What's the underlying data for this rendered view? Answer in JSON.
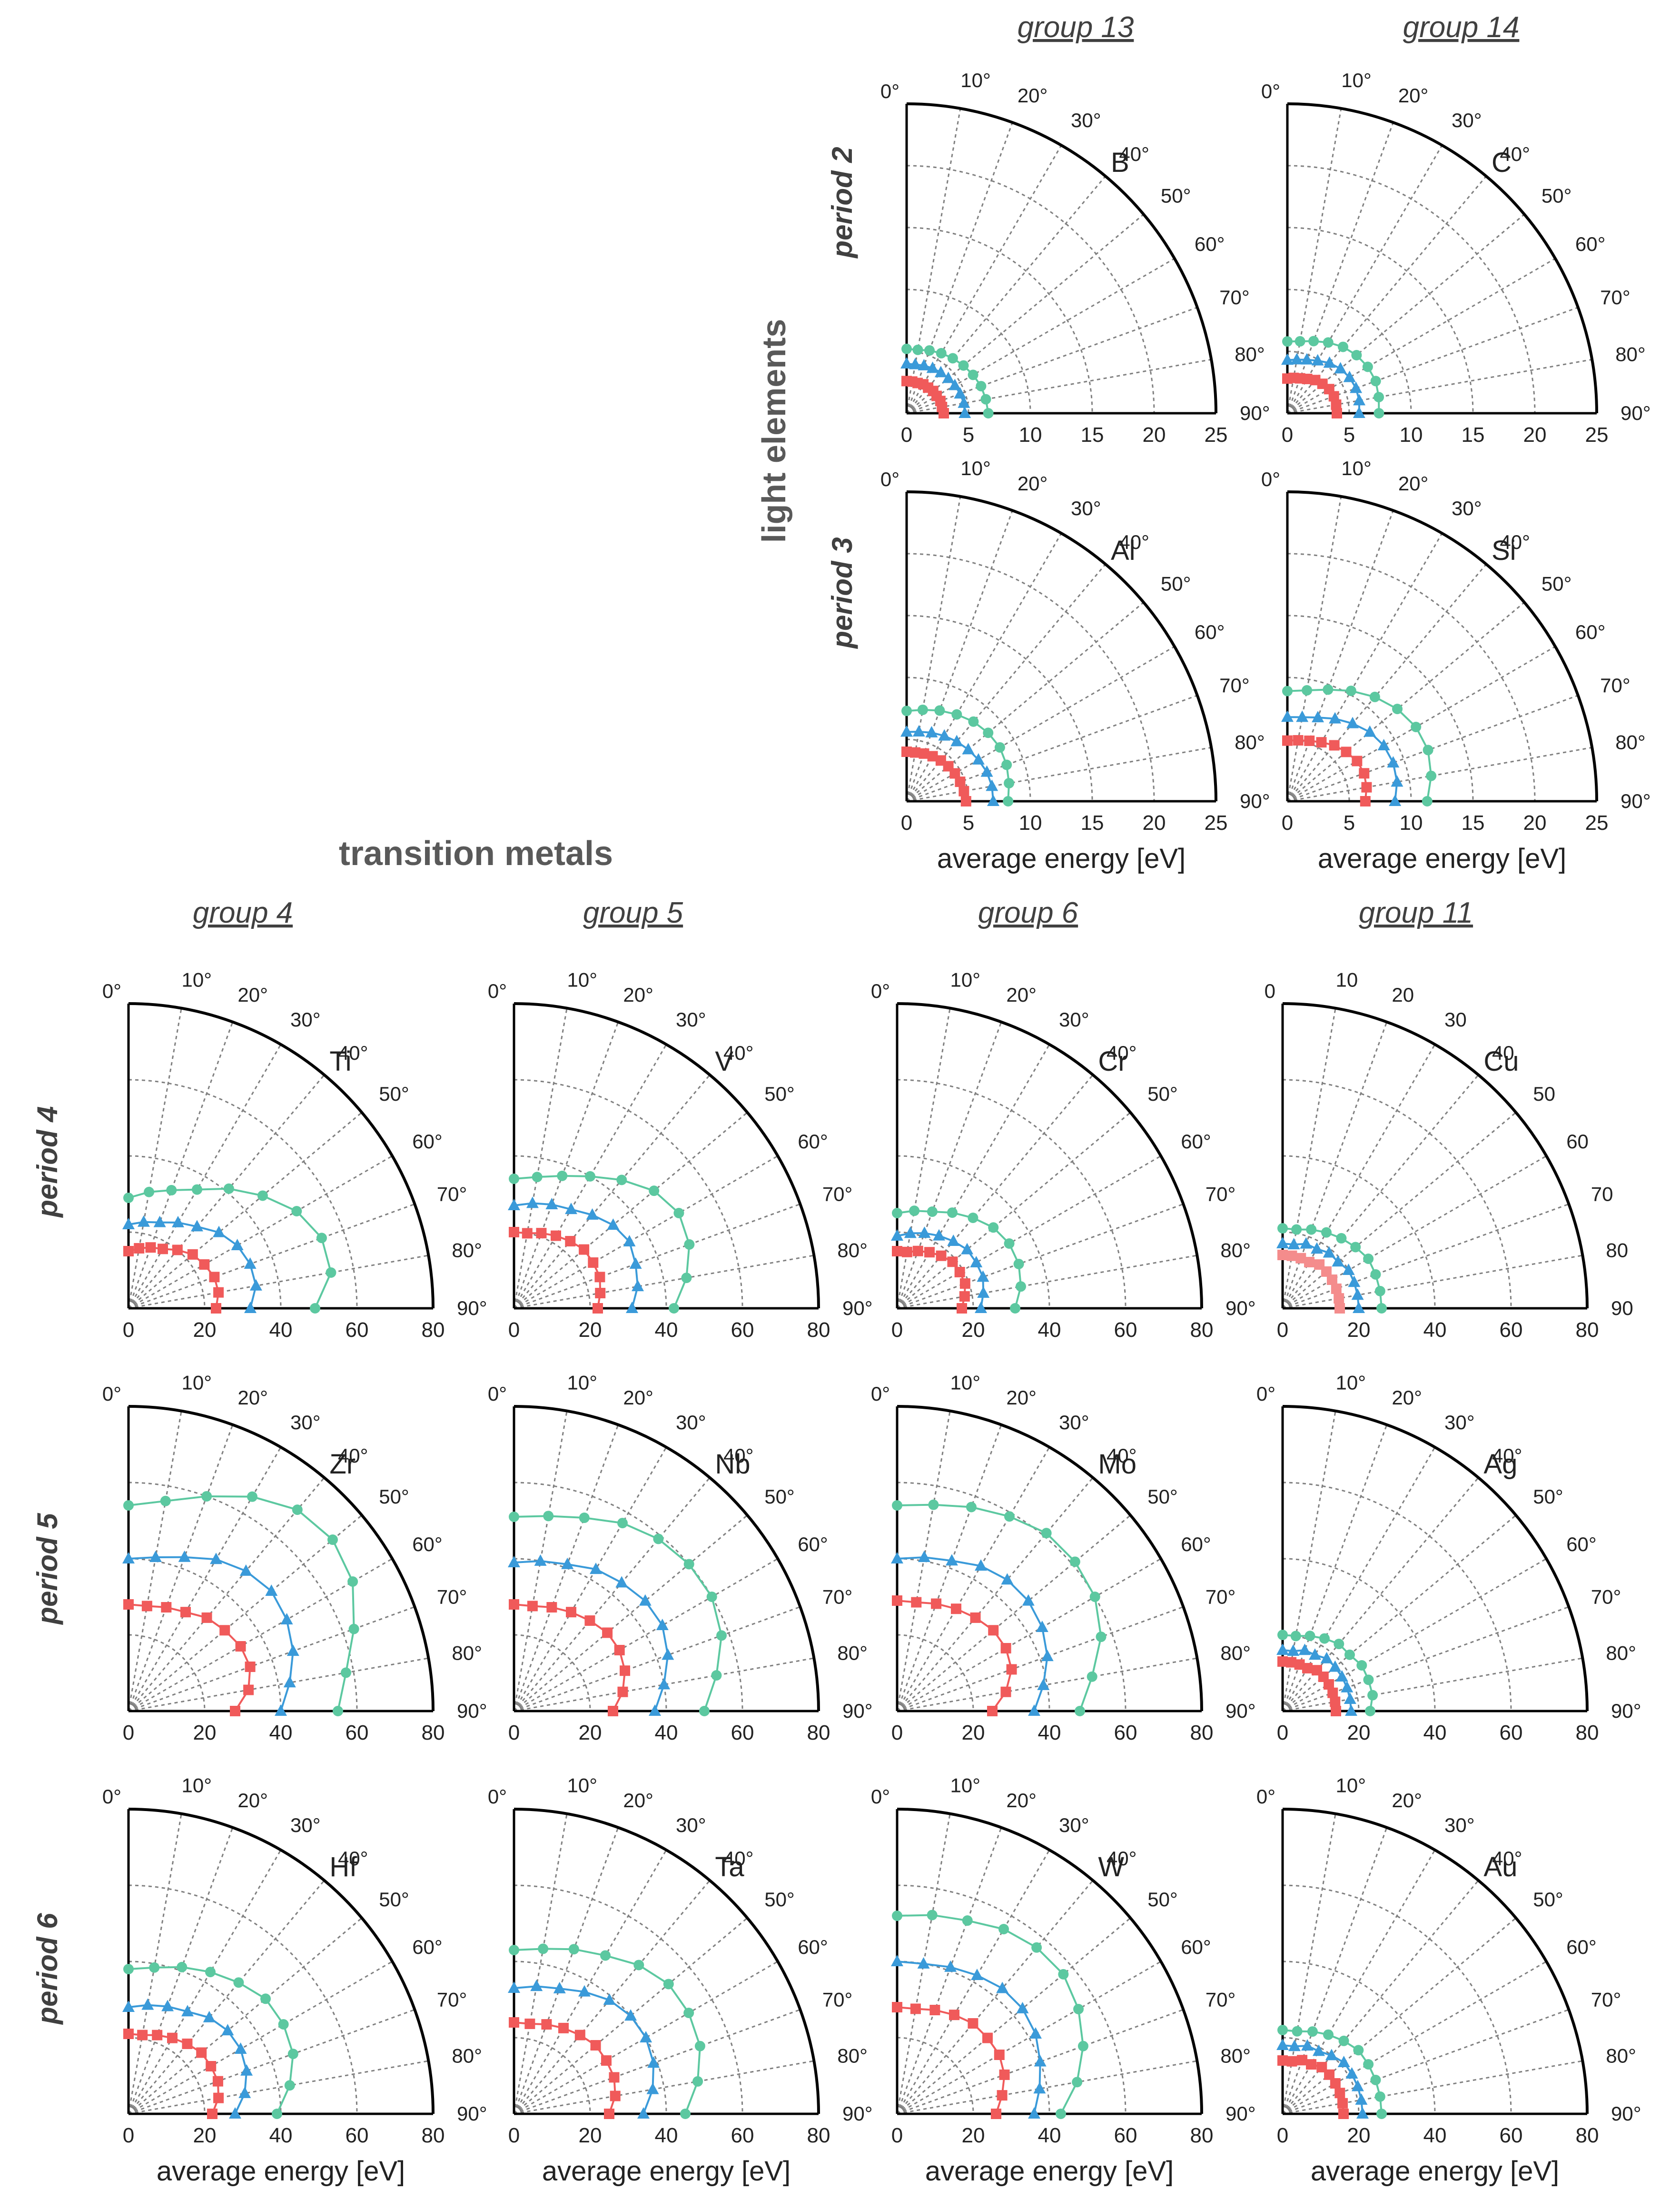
{
  "section_titles": {
    "light_elements": "light elements",
    "transition_metals": "transition metals"
  },
  "light_groups": [
    "group 13",
    "group 14"
  ],
  "light_periods": [
    "period 2",
    "period 3"
  ],
  "tm_groups": [
    "group 4",
    "group 5",
    "group 6",
    "group 11"
  ],
  "tm_periods": [
    "period 4",
    "period 5",
    "period 6"
  ],
  "xlabel": "average energy [eV]",
  "colors": {
    "s1": "#f05a5a",
    "s2": "#3a9ad9",
    "s3": "#5cc8a0",
    "s1_cu": "#f48c8c"
  },
  "chart_data": [
    {
      "type": "polar",
      "element": "B",
      "group": "group 13",
      "period": "period 2",
      "rmax": 25,
      "xticks": [
        "0",
        "5",
        "10",
        "15",
        "20",
        "25"
      ],
      "angle_labels": [
        "0°",
        "10°",
        "20°",
        "30°",
        "40°",
        "50°",
        "60°",
        "70°",
        "80°",
        "90°"
      ],
      "xlabel": "",
      "series": [
        {
          "name": "series 1",
          "values": [
            2.6,
            2.6,
            2.6,
            2.7,
            2.7,
            2.8,
            2.8,
            2.9,
            2.9,
            3.0
          ]
        },
        {
          "name": "series 2",
          "values": [
            4.0,
            4.0,
            4.1,
            4.2,
            4.3,
            4.4,
            4.5,
            4.6,
            4.7,
            4.7
          ]
        },
        {
          "name": "series 3",
          "values": [
            5.2,
            5.2,
            5.4,
            5.6,
            5.8,
            6.0,
            6.2,
            6.4,
            6.5,
            6.6
          ]
        }
      ]
    },
    {
      "type": "polar",
      "element": "C",
      "group": "group 14",
      "period": "period 2",
      "rmax": 25,
      "xticks": [
        "0",
        "5",
        "10",
        "15",
        "20",
        "25"
      ],
      "angle_labels": [
        "0°",
        "10°",
        "20°",
        "30°",
        "40°",
        "50°",
        "60°",
        "70°",
        "80°",
        "90°"
      ],
      "xlabel": "",
      "series": [
        {
          "name": "series 1",
          "values": [
            2.8,
            2.9,
            3.0,
            3.2,
            3.5,
            3.7,
            3.9,
            4.0,
            4.0,
            4.0
          ]
        },
        {
          "name": "series 2",
          "values": [
            4.3,
            4.4,
            4.6,
            4.9,
            5.3,
            5.6,
            5.8,
            5.9,
            5.9,
            5.8
          ]
        },
        {
          "name": "series 3",
          "values": [
            5.8,
            5.9,
            6.2,
            6.6,
            7.0,
            7.3,
            7.5,
            7.6,
            7.5,
            7.4
          ]
        }
      ]
    },
    {
      "type": "polar",
      "element": "Al",
      "group": "group 13",
      "period": "period 3",
      "rmax": 25,
      "xticks": [
        "0",
        "5",
        "10",
        "15",
        "20",
        "25"
      ],
      "angle_labels": [
        "0°",
        "10°",
        "20°",
        "30°",
        "40°",
        "50°",
        "60°",
        "70°",
        "80°",
        "90°"
      ],
      "xlabel": "average energy [eV]",
      "series": [
        {
          "name": "series 1",
          "values": [
            4.0,
            4.0,
            4.1,
            4.2,
            4.3,
            4.4,
            4.5,
            4.6,
            4.7,
            4.8
          ]
        },
        {
          "name": "series 2",
          "values": [
            5.6,
            5.7,
            5.9,
            6.1,
            6.3,
            6.5,
            6.7,
            6.9,
            7.0,
            7.0
          ]
        },
        {
          "name": "series 3",
          "values": [
            7.3,
            7.5,
            7.8,
            8.1,
            8.4,
            8.6,
            8.7,
            8.6,
            8.4,
            8.2
          ]
        }
      ]
    },
    {
      "type": "polar",
      "element": "Si",
      "group": "group 14",
      "period": "period 3",
      "rmax": 25,
      "xticks": [
        "0",
        "5",
        "10",
        "15",
        "20",
        "25"
      ],
      "angle_labels": [
        "0°",
        "10°",
        "20°",
        "30°",
        "40°",
        "50°",
        "60°",
        "70°",
        "80°",
        "90°"
      ],
      "xlabel": "average energy [eV]",
      "series": [
        {
          "name": "series 1",
          "values": [
            4.9,
            5.0,
            5.2,
            5.5,
            5.9,
            6.2,
            6.5,
            6.6,
            6.5,
            6.3
          ]
        },
        {
          "name": "series 2",
          "values": [
            6.8,
            6.9,
            7.2,
            7.7,
            8.2,
            8.7,
            9.0,
            9.1,
            9.0,
            8.7
          ]
        },
        {
          "name": "series 3",
          "values": [
            8.9,
            9.1,
            9.6,
            10.3,
            11.0,
            11.6,
            12.0,
            12.1,
            11.8,
            11.3
          ]
        }
      ]
    },
    {
      "type": "polar",
      "element": "Ti",
      "group": "group 4",
      "period": "period 4",
      "rmax": 80,
      "xticks": [
        "0",
        "20",
        "40",
        "60",
        "80"
      ],
      "angle_labels": [
        "0°",
        "10°",
        "20°",
        "30°",
        "40°",
        "50°",
        "60°",
        "70°",
        "80°",
        "90°"
      ],
      "xlabel": "",
      "series": [
        {
          "name": "series 1",
          "values": [
            15,
            16,
            17,
            18,
            20,
            22,
            23,
            24,
            24,
            23
          ]
        },
        {
          "name": "series 2",
          "values": [
            22,
            23,
            24,
            26,
            28,
            31,
            33,
            34,
            34,
            32
          ]
        },
        {
          "name": "series 3",
          "values": [
            29,
            31,
            33,
            36,
            41,
            46,
            51,
            54,
            54,
            49
          ]
        }
      ]
    },
    {
      "type": "polar",
      "element": "V",
      "group": "group 5",
      "period": "period 4",
      "rmax": 80,
      "xticks": [
        "0",
        "20",
        "40",
        "60",
        "80"
      ],
      "angle_labels": [
        "0°",
        "10°",
        "20°",
        "30°",
        "40°",
        "50°",
        "60°",
        "70°",
        "80°",
        "90°"
      ],
      "xlabel": "",
      "series": [
        {
          "name": "series 1",
          "values": [
            20,
            20,
            21,
            22,
            23,
            24,
            24,
            24,
            23,
            22
          ]
        },
        {
          "name": "series 2",
          "values": [
            27,
            28,
            29,
            30,
            32,
            34,
            35,
            34,
            33,
            31
          ]
        },
        {
          "name": "series 3",
          "values": [
            34,
            35,
            37,
            40,
            44,
            48,
            50,
            49,
            46,
            42
          ]
        }
      ]
    },
    {
      "type": "polar",
      "element": "Cr",
      "group": "group 6",
      "period": "period 4",
      "rmax": 80,
      "xticks": [
        "0",
        "20",
        "40",
        "60",
        "80"
      ],
      "angle_labels": [
        "0°",
        "10°",
        "20°",
        "30°",
        "40°",
        "50°",
        "60°",
        "70°",
        "80°",
        "90°"
      ],
      "xlabel": "",
      "series": [
        {
          "name": "series 1",
          "values": [
            15,
            15,
            16,
            17,
            18,
            19,
            19,
            19,
            18,
            17
          ]
        },
        {
          "name": "series 2",
          "values": [
            19,
            20,
            21,
            22,
            23,
            24,
            24,
            24,
            23,
            22
          ]
        },
        {
          "name": "series 3",
          "values": [
            25,
            26,
            27,
            29,
            31,
            33,
            34,
            34,
            33,
            31
          ]
        }
      ]
    },
    {
      "type": "polar",
      "element": "Cu",
      "group": "group 11",
      "period": "period 4",
      "rmax": 80,
      "xticks": [
        "0",
        "20",
        "40",
        "60",
        "80"
      ],
      "angle_labels": [
        "0",
        "10",
        "20",
        "30",
        "40",
        "50",
        "60",
        "70",
        "80",
        "90"
      ],
      "xlabel": "",
      "series": [
        {
          "name": "series 1",
          "values": [
            14,
            14,
            14,
            14,
            15,
            15,
            15,
            15,
            15,
            15
          ]
        },
        {
          "name": "series 2",
          "values": [
            17,
            17,
            18,
            18,
            19,
            19,
            20,
            20,
            20,
            20
          ]
        },
        {
          "name": "series 3",
          "values": [
            21,
            21,
            22,
            23,
            24,
            25,
            26,
            26,
            26,
            26
          ]
        }
      ]
    },
    {
      "type": "polar",
      "element": "Zr",
      "group": "group 4",
      "period": "period 5",
      "rmax": 80,
      "xticks": [
        "0",
        "20",
        "40",
        "60",
        "80"
      ],
      "angle_labels": [
        "0°",
        "10°",
        "20°",
        "30°",
        "40°",
        "50°",
        "60°",
        "70°",
        "80°",
        "90°"
      ],
      "xlabel": "",
      "series": [
        {
          "name": "series 1",
          "values": [
            28,
            28,
            29,
            30,
            32,
            33,
            34,
            34,
            32,
            28
          ]
        },
        {
          "name": "series 2",
          "values": [
            40,
            41,
            43,
            46,
            48,
            49,
            48,
            46,
            43,
            40
          ]
        },
        {
          "name": "series 3",
          "values": [
            54,
            56,
            60,
            65,
            69,
            70,
            68,
            63,
            58,
            55
          ]
        }
      ]
    },
    {
      "type": "polar",
      "element": "Nb",
      "group": "group 5",
      "period": "period 5",
      "rmax": 80,
      "xticks": [
        "0",
        "20",
        "40",
        "60",
        "80"
      ],
      "angle_labels": [
        "0°",
        "10°",
        "20°",
        "30°",
        "40°",
        "50°",
        "60°",
        "70°",
        "80°",
        "90°"
      ],
      "xlabel": "",
      "series": [
        {
          "name": "series 1",
          "values": [
            28,
            28,
            29,
            30,
            31,
            32,
            32,
            31,
            29,
            26
          ]
        },
        {
          "name": "series 2",
          "values": [
            39,
            40,
            41,
            43,
            44,
            45,
            45,
            43,
            40,
            37
          ]
        },
        {
          "name": "series 3",
          "values": [
            51,
            52,
            54,
            57,
            59,
            60,
            60,
            58,
            54,
            50
          ]
        }
      ]
    },
    {
      "type": "polar",
      "element": "Mo",
      "group": "group 6",
      "period": "period 5",
      "rmax": 80,
      "xticks": [
        "0",
        "20",
        "40",
        "60",
        "80"
      ],
      "angle_labels": [
        "0°",
        "10°",
        "20°",
        "30°",
        "40°",
        "50°",
        "60°",
        "70°",
        "80°",
        "90°"
      ],
      "xlabel": "",
      "series": [
        {
          "name": "series 1",
          "values": [
            29,
            29,
            30,
            31,
            32,
            33,
            33,
            32,
            29,
            25
          ]
        },
        {
          "name": "series 2",
          "values": [
            40,
            41,
            42,
            44,
            45,
            45,
            44,
            42,
            39,
            36
          ]
        },
        {
          "name": "series 3",
          "values": [
            54,
            55,
            57,
            59,
            61,
            61,
            60,
            57,
            52,
            48
          ]
        }
      ]
    },
    {
      "type": "polar",
      "element": "Ag",
      "group": "group 11",
      "period": "period 5",
      "rmax": 80,
      "xticks": [
        "0",
        "20",
        "40",
        "60",
        "80"
      ],
      "angle_labels": [
        "0°",
        "10°",
        "20°",
        "30°",
        "40°",
        "50°",
        "60°",
        "70°",
        "80°",
        "90°"
      ],
      "xlabel": "",
      "series": [
        {
          "name": "series 1",
          "values": [
            13,
            13,
            13,
            13,
            14,
            14,
            14,
            14,
            14,
            14
          ]
        },
        {
          "name": "series 2",
          "values": [
            16,
            16,
            17,
            17,
            18,
            18,
            18,
            18,
            18,
            18
          ]
        },
        {
          "name": "series 3",
          "values": [
            20,
            20,
            21,
            22,
            23,
            23,
            24,
            24,
            24,
            23
          ]
        }
      ]
    },
    {
      "type": "polar",
      "element": "Hf",
      "group": "group 4",
      "period": "period 6",
      "rmax": 80,
      "xticks": [
        "0",
        "20",
        "40",
        "60",
        "80"
      ],
      "angle_labels": [
        "0°",
        "10°",
        "20°",
        "30°",
        "40°",
        "50°",
        "60°",
        "70°",
        "80°",
        "90°"
      ],
      "xlabel": "average energy [eV]",
      "series": [
        {
          "name": "series 1",
          "values": [
            21,
            21,
            22,
            23,
            24,
            25,
            25,
            25,
            24,
            22
          ]
        },
        {
          "name": "series 2",
          "values": [
            28,
            29,
            30,
            31,
            33,
            34,
            34,
            33,
            31,
            28
          ]
        },
        {
          "name": "series 3",
          "values": [
            38,
            39,
            41,
            43,
            45,
            47,
            47,
            46,
            43,
            39
          ]
        }
      ]
    },
    {
      "type": "polar",
      "element": "Ta",
      "group": "group 5",
      "period": "period 6",
      "rmax": 80,
      "xticks": [
        "0",
        "20",
        "40",
        "60",
        "80"
      ],
      "angle_labels": [
        "0°",
        "10°",
        "20°",
        "30°",
        "40°",
        "50°",
        "60°",
        "70°",
        "80°",
        "90°"
      ],
      "xlabel": "average energy [eV]",
      "series": [
        {
          "name": "series 1",
          "values": [
            24,
            24,
            25,
            26,
            27,
            28,
            28,
            28,
            27,
            25
          ]
        },
        {
          "name": "series 2",
          "values": [
            33,
            34,
            35,
            37,
            39,
            40,
            40,
            39,
            37,
            34
          ]
        },
        {
          "name": "series 3",
          "values": [
            43,
            44,
            46,
            48,
            51,
            53,
            53,
            52,
            49,
            45
          ]
        }
      ]
    },
    {
      "type": "polar",
      "element": "W",
      "group": "group 6",
      "period": "period 6",
      "rmax": 80,
      "xticks": [
        "0",
        "20",
        "40",
        "60",
        "80"
      ],
      "angle_labels": [
        "0°",
        "10°",
        "20°",
        "30°",
        "40°",
        "50°",
        "60°",
        "70°",
        "80°",
        "90°"
      ],
      "xlabel": "average energy [eV]",
      "series": [
        {
          "name": "series 1",
          "values": [
            28,
            28,
            29,
            30,
            31,
            31,
            31,
            30,
            28,
            26
          ]
        },
        {
          "name": "series 2",
          "values": [
            40,
            40,
            41,
            42,
            43,
            43,
            42,
            40,
            38,
            36
          ]
        },
        {
          "name": "series 3",
          "values": [
            52,
            53,
            54,
            56,
            57,
            57,
            55,
            52,
            48,
            43
          ]
        }
      ]
    },
    {
      "type": "polar",
      "element": "Au",
      "group": "group 11",
      "period": "period 6",
      "rmax": 80,
      "xticks": [
        "0",
        "20",
        "40",
        "60",
        "80"
      ],
      "angle_labels": [
        "0°",
        "10°",
        "20°",
        "30°",
        "40°",
        "50°",
        "60°",
        "70°",
        "80°",
        "90°"
      ],
      "xlabel": "average energy [eV]",
      "series": [
        {
          "name": "series 1",
          "values": [
            14,
            14,
            15,
            15,
            16,
            16,
            16,
            16,
            16,
            16
          ]
        },
        {
          "name": "series 2",
          "values": [
            18,
            18,
            19,
            19,
            20,
            21,
            21,
            21,
            21,
            21
          ]
        },
        {
          "name": "series 3",
          "values": [
            22,
            22,
            23,
            24,
            25,
            26,
            26,
            26,
            26,
            26
          ]
        }
      ]
    }
  ]
}
